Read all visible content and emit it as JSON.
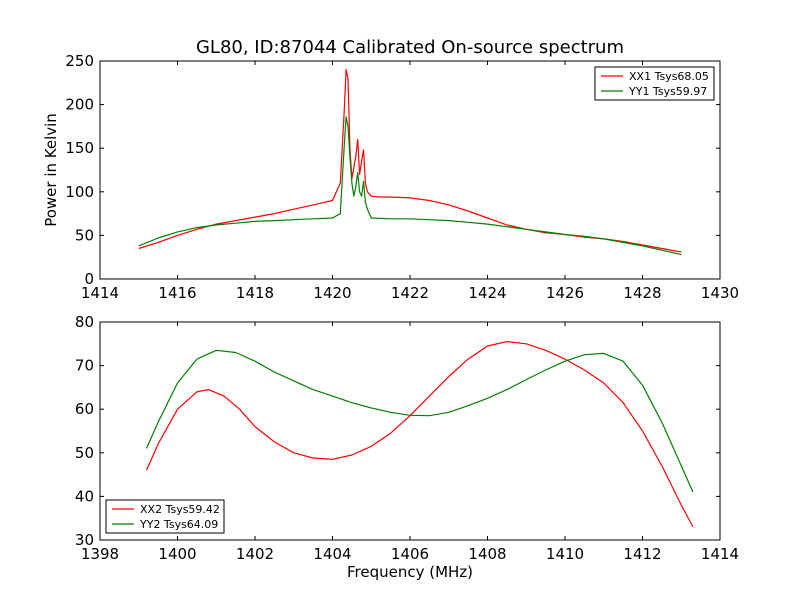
{
  "title": "GL80, ID:87044 Calibrated On-source spectrum",
  "chart_data": [
    {
      "type": "line",
      "title": "GL80, ID:87044 Calibrated On-source spectrum",
      "xlabel": "",
      "ylabel": "Power in Kelvin",
      "xlim": [
        1414,
        1430
      ],
      "ylim": [
        0,
        250
      ],
      "xticks": [
        1414,
        1416,
        1418,
        1420,
        1422,
        1424,
        1426,
        1428,
        1430
      ],
      "yticks": [
        0,
        50,
        100,
        150,
        200,
        250
      ],
      "grid": false,
      "legend": "top-right",
      "series": [
        {
          "name": "XX1 Tsys68.05",
          "color": "#ff0000",
          "x": [
            1415.0,
            1415.5,
            1416.0,
            1416.5,
            1417.0,
            1417.5,
            1418.0,
            1418.5,
            1419.0,
            1419.5,
            1419.8,
            1420.0,
            1420.2,
            1420.3,
            1420.35,
            1420.4,
            1420.45,
            1420.5,
            1420.6,
            1420.65,
            1420.7,
            1420.75,
            1420.8,
            1420.85,
            1420.9,
            1421.0,
            1421.2,
            1421.5,
            1422.0,
            1422.5,
            1423.0,
            1423.5,
            1424.0,
            1424.5,
            1425.0,
            1425.5,
            1426.0,
            1426.5,
            1427.0,
            1427.5,
            1428.0,
            1428.5,
            1429.0
          ],
          "values": [
            35,
            42,
            50,
            57,
            63,
            67,
            71,
            75,
            80,
            85,
            88,
            90,
            110,
            190,
            240,
            230,
            150,
            115,
            140,
            160,
            120,
            135,
            148,
            110,
            100,
            95,
            94,
            94,
            93,
            90,
            85,
            78,
            70,
            62,
            57,
            53,
            51,
            48,
            46,
            43,
            39,
            35,
            31
          ]
        },
        {
          "name": "YY1 Tsys59.97",
          "color": "#008000",
          "x": [
            1415.0,
            1415.5,
            1416.0,
            1416.5,
            1417.0,
            1417.5,
            1418.0,
            1418.5,
            1419.0,
            1419.5,
            1420.0,
            1420.2,
            1420.3,
            1420.35,
            1420.4,
            1420.45,
            1420.5,
            1420.55,
            1420.6,
            1420.65,
            1420.7,
            1420.75,
            1420.8,
            1420.85,
            1420.9,
            1421.0,
            1421.5,
            1422.0,
            1422.5,
            1423.0,
            1423.5,
            1424.0,
            1424.5,
            1425.0,
            1425.5,
            1426.0,
            1426.5,
            1427.0,
            1427.5,
            1428.0,
            1428.5,
            1429.0
          ],
          "values": [
            38,
            47,
            54,
            59,
            62,
            64,
            66,
            67,
            68,
            69,
            70,
            75,
            150,
            186,
            175,
            140,
            110,
            95,
            105,
            122,
            100,
            95,
            112,
            88,
            80,
            70,
            69,
            69,
            68,
            67,
            65,
            63,
            60,
            57,
            54,
            51,
            49,
            46,
            42,
            38,
            33,
            28
          ]
        }
      ]
    },
    {
      "type": "line",
      "title": "",
      "xlabel": "Frequency (MHz)",
      "ylabel": "",
      "xlim": [
        1398,
        1414
      ],
      "ylim": [
        30,
        80
      ],
      "xticks": [
        1398,
        1400,
        1402,
        1404,
        1406,
        1408,
        1410,
        1412,
        1414
      ],
      "yticks": [
        30,
        40,
        50,
        60,
        70,
        80
      ],
      "grid": false,
      "legend": "bottom-left",
      "series": [
        {
          "name": "XX2 Tsys59.42",
          "color": "#ff0000",
          "x": [
            1399.2,
            1399.5,
            1400.0,
            1400.5,
            1400.8,
            1401.2,
            1401.6,
            1402.0,
            1402.5,
            1403.0,
            1403.5,
            1404.0,
            1404.5,
            1405.0,
            1405.5,
            1406.0,
            1406.5,
            1407.0,
            1407.5,
            1408.0,
            1408.5,
            1409.0,
            1409.5,
            1410.0,
            1410.5,
            1411.0,
            1411.5,
            1412.0,
            1412.5,
            1413.0,
            1413.3
          ],
          "values": [
            46,
            52,
            60,
            64,
            64.5,
            63,
            60,
            56,
            52.5,
            50,
            48.8,
            48.5,
            49.5,
            51.5,
            54.5,
            58.5,
            63,
            67.5,
            71.5,
            74.5,
            75.5,
            75,
            73.5,
            71.5,
            69,
            66,
            61.5,
            55,
            47,
            38,
            33
          ]
        },
        {
          "name": "YY2 Tsys64.09",
          "color": "#008000",
          "x": [
            1399.2,
            1399.5,
            1400.0,
            1400.5,
            1401.0,
            1401.5,
            1402.0,
            1402.5,
            1403.0,
            1403.5,
            1404.0,
            1404.5,
            1405.0,
            1405.5,
            1406.0,
            1406.5,
            1407.0,
            1407.5,
            1408.0,
            1408.5,
            1409.0,
            1409.5,
            1410.0,
            1410.5,
            1411.0,
            1411.5,
            1412.0,
            1412.5,
            1413.0,
            1413.3
          ],
          "values": [
            51,
            57,
            66,
            71.5,
            73.5,
            73,
            71,
            68.5,
            66.5,
            64.5,
            63,
            61.5,
            60.3,
            59.3,
            58.6,
            58.5,
            59.3,
            60.8,
            62.5,
            64.5,
            66.8,
            69,
            71,
            72.5,
            72.8,
            71,
            65.5,
            57,
            47,
            41
          ]
        }
      ]
    }
  ]
}
